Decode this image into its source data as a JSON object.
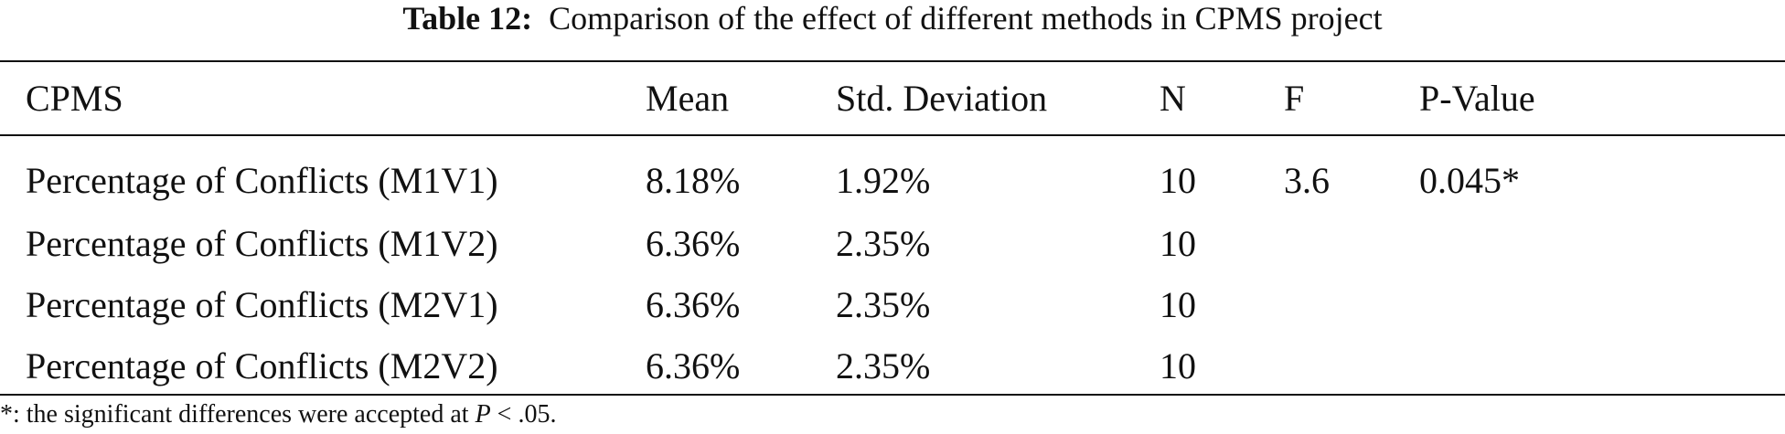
{
  "caption": {
    "label": "Table 12:",
    "text": "Comparison of the effect of different methods in CPMS project"
  },
  "table": {
    "headers": [
      "CPMS",
      "Mean",
      "Std. Deviation",
      "N",
      "F",
      "P-Value"
    ],
    "rows": [
      [
        "Percentage of Conflicts (M1V1)",
        "8.18%",
        "1.92%",
        "10",
        "3.6",
        "0.045*"
      ],
      [
        "Percentage of Conflicts (M1V2)",
        "6.36%",
        "2.35%",
        "10",
        "",
        ""
      ],
      [
        "Percentage of Conflicts (M2V1)",
        "6.36%",
        "2.35%",
        "10",
        "",
        ""
      ],
      [
        "Percentage of Conflicts (M2V2)",
        "6.36%",
        "2.35%",
        "10",
        "",
        ""
      ]
    ]
  },
  "footnote": {
    "prefix": "*: the significant differences were accepted at ",
    "variable": "P",
    "suffix": " < .05."
  }
}
